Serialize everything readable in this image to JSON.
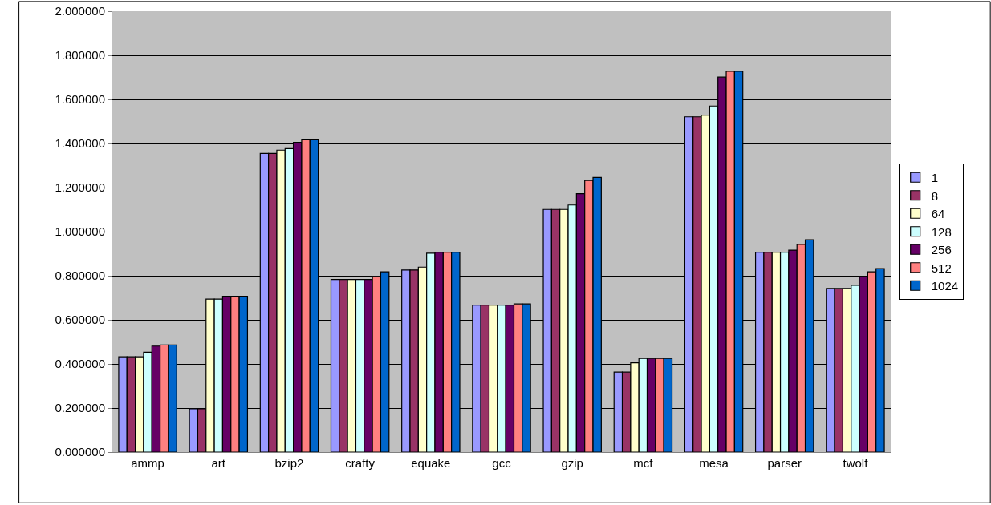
{
  "chart_data": {
    "type": "bar",
    "categories": [
      "ammp",
      "art",
      "bzip2",
      "crafty",
      "equake",
      "gcc",
      "gzip",
      "mcf",
      "mesa",
      "parser",
      "twolf"
    ],
    "series": [
      {
        "name": "1",
        "color": "#9999ff",
        "values": [
          0.432,
          0.197,
          1.355,
          0.783,
          0.826,
          0.667,
          1.101,
          0.363,
          1.521,
          0.907,
          0.742
        ]
      },
      {
        "name": "8",
        "color": "#993366",
        "values": [
          0.432,
          0.197,
          1.355,
          0.783,
          0.826,
          0.667,
          1.101,
          0.363,
          1.521,
          0.907,
          0.742
        ]
      },
      {
        "name": "64",
        "color": "#ffffcc",
        "values": [
          0.432,
          0.694,
          1.37,
          0.783,
          0.839,
          0.667,
          1.101,
          0.405,
          1.529,
          0.907,
          0.742
        ]
      },
      {
        "name": "128",
        "color": "#ccffff",
        "values": [
          0.453,
          0.694,
          1.377,
          0.783,
          0.902,
          0.667,
          1.121,
          0.425,
          1.57,
          0.907,
          0.757
        ]
      },
      {
        "name": "256",
        "color": "#660066",
        "values": [
          0.481,
          0.707,
          1.405,
          0.783,
          0.907,
          0.667,
          1.172,
          0.425,
          1.701,
          0.916,
          0.797
        ]
      },
      {
        "name": "512",
        "color": "#ff8080",
        "values": [
          0.486,
          0.707,
          1.417,
          0.797,
          0.907,
          0.672,
          1.232,
          0.425,
          1.728,
          0.942,
          0.818
        ]
      },
      {
        "name": "1024",
        "color": "#0066cc",
        "values": [
          0.486,
          0.707,
          1.417,
          0.818,
          0.907,
          0.672,
          1.246,
          0.425,
          1.728,
          0.963,
          0.832
        ]
      }
    ],
    "ylim": [
      0,
      2
    ],
    "yticks": [
      {
        "value": 0,
        "label": "0.000000"
      },
      {
        "value": 0.2,
        "label": "0.200000"
      },
      {
        "value": 0.4,
        "label": "0.400000"
      },
      {
        "value": 0.6,
        "label": "0.600000"
      },
      {
        "value": 0.8,
        "label": "0.800000"
      },
      {
        "value": 1.0,
        "label": "1.000000"
      },
      {
        "value": 1.2,
        "label": "1.200000"
      },
      {
        "value": 1.4,
        "label": "1.400000"
      },
      {
        "value": 1.6,
        "label": "1.600000"
      },
      {
        "value": 1.8,
        "label": "1.800000"
      },
      {
        "value": 2.0,
        "label": "2.000000"
      }
    ],
    "grid": "y",
    "legend": "right"
  }
}
